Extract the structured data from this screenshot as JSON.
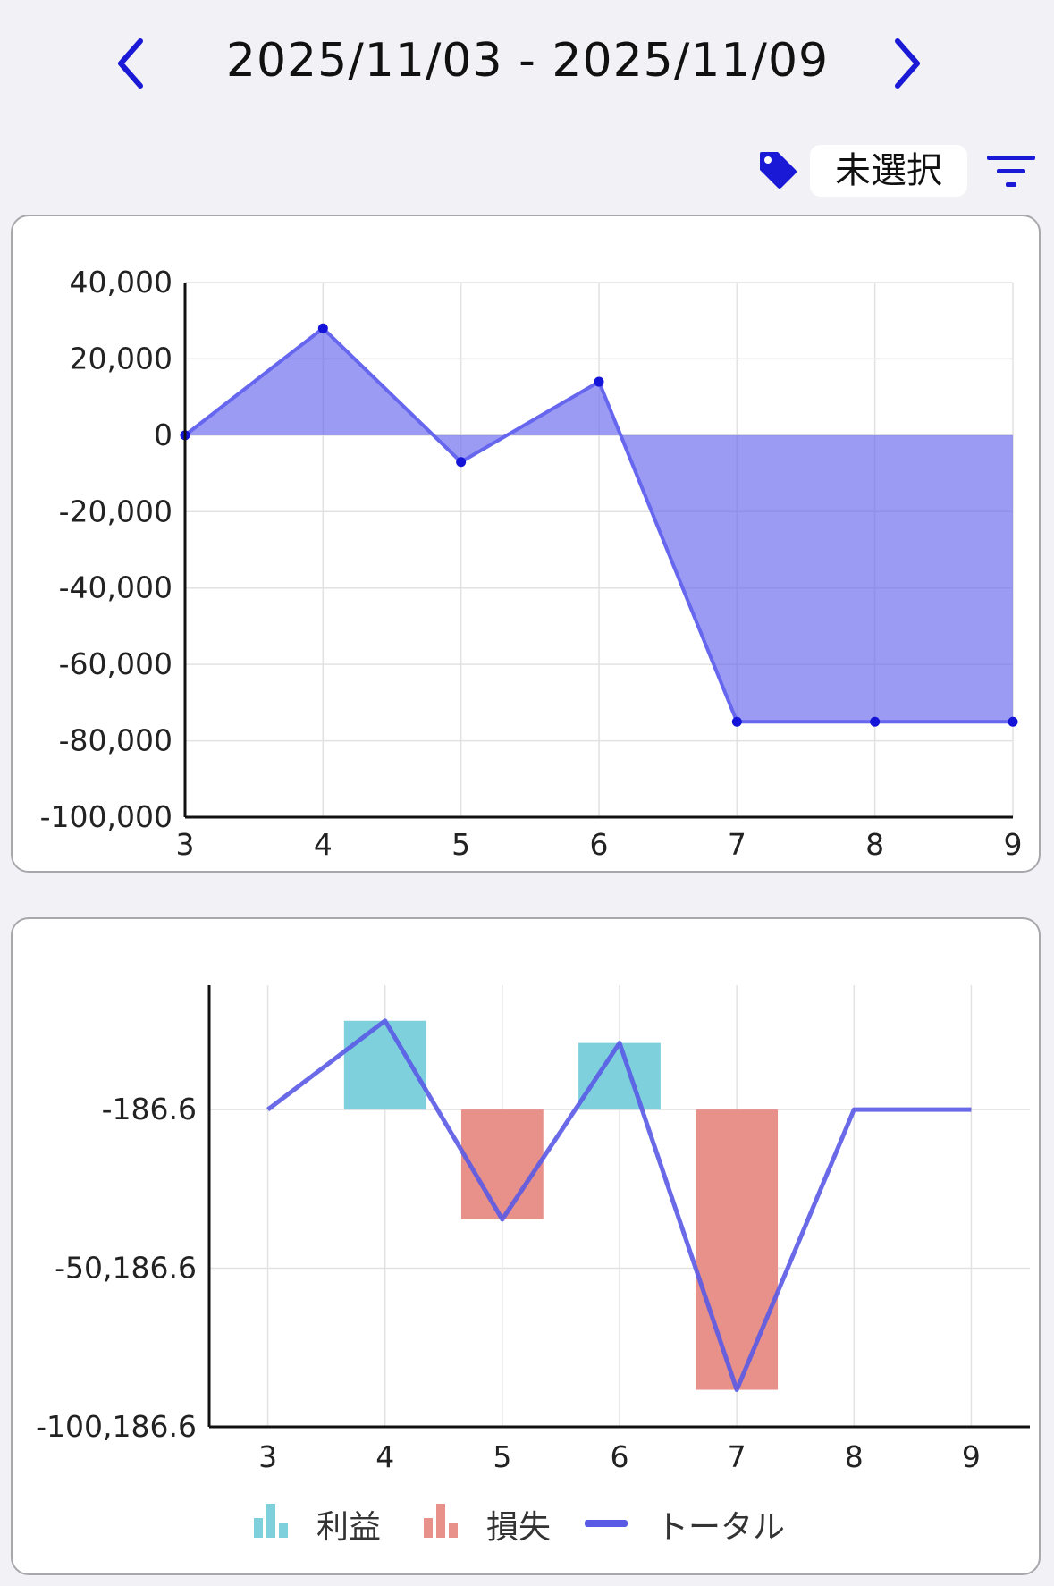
{
  "header": {
    "date_range": "2025/11/03 - 2025/11/09",
    "accent_color": "#1a1ad6"
  },
  "toolbar": {
    "tag_label": "未選択"
  },
  "chart_data": [
    {
      "type": "area",
      "x": [
        3,
        4,
        5,
        6,
        7,
        8,
        9
      ],
      "series": [
        {
          "values": [
            0,
            28000,
            -7000,
            14000,
            -75000,
            -75000,
            -75000
          ],
          "color": "#6666ee"
        }
      ],
      "ylim": [
        -100000,
        40000
      ],
      "y_ticks": [
        "40,000",
        "20,000",
        "0",
        "-20,000",
        "-40,000",
        "-60,000",
        "-80,000",
        "-100,000"
      ],
      "x_ticks": [
        "3",
        "4",
        "5",
        "6",
        "7",
        "8",
        "9"
      ],
      "grid": true
    },
    {
      "type": "bar",
      "x": [
        3,
        4,
        5,
        6,
        7,
        8,
        9
      ],
      "y_ticks": [
        "-186.6",
        "-50,186.6",
        "-100,186.6"
      ],
      "x_ticks": [
        "3",
        "4",
        "5",
        "6",
        "7",
        "8",
        "9"
      ],
      "ylim": [
        -100186.6,
        39000
      ],
      "grid": true,
      "legend": "bottom",
      "series": [
        {
          "name": "利益",
          "type": "bar",
          "color": "#7fd0dd",
          "values": [
            0,
            27800,
            0,
            20800,
            0,
            0,
            0
          ]
        },
        {
          "name": "損失",
          "type": "bar",
          "color": "#e8908a",
          "values": [
            0,
            0,
            -34800,
            0,
            -88500,
            0,
            0
          ]
        },
        {
          "name": "トータル",
          "type": "line",
          "color": "#5a5ae6",
          "values": [
            -186.6,
            27800,
            -34800,
            20800,
            -88500,
            -186.6,
            -186.6
          ]
        }
      ]
    }
  ]
}
